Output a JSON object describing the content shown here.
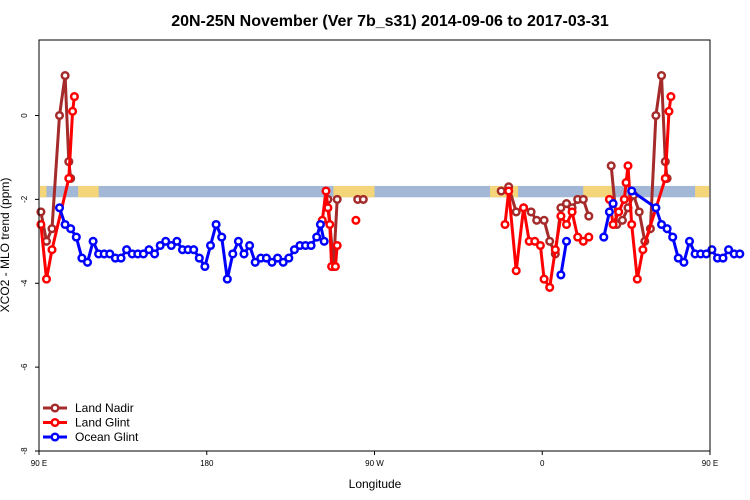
{
  "chart_data": {
    "type": "line",
    "title": "20N-25N November (Ver 7b_s31)   2014-09-06 to 2017-03-31",
    "xlabel": "Longitude",
    "ylabel": "XCO2 - MLO trend (ppm)",
    "xlim": [
      90,
      450
    ],
    "ylim": [
      -8,
      1.8
    ],
    "x_ticks": [
      {
        "value": 90,
        "label": "90 E"
      },
      {
        "value": 180,
        "label": "180"
      },
      {
        "value": 270,
        "label": "90 W"
      },
      {
        "value": 360,
        "label": "0"
      },
      {
        "value": 450,
        "label": "90 E"
      },
      {
        "value": 540,
        "label": "180"
      }
    ],
    "y_ticks": [
      {
        "value": 0,
        "label": "0"
      },
      {
        "value": -2,
        "label": "-2"
      },
      {
        "value": -4,
        "label": "-4"
      },
      {
        "value": -6,
        "label": "-6"
      },
      {
        "value": -8,
        "label": "-8"
      }
    ],
    "legend_position": "bottom-left",
    "colors": {
      "band_ocean": "#a3b8d6",
      "band_land": "#f5d57a"
    },
    "band": {
      "y_min": -1.95,
      "y_max": -1.68
    },
    "land_segments": [
      [
        90,
        94
      ],
      [
        111,
        122
      ],
      [
        248,
        270
      ],
      [
        332,
        347
      ],
      [
        382,
        398
      ],
      [
        442,
        474
      ]
    ],
    "series": [
      {
        "name": "Land Nadir",
        "color": "#a52a2a",
        "segments": [
          [
            [
              91,
              -2.3
            ],
            [
              94,
              -3.0
            ],
            [
              97,
              -2.7
            ],
            [
              101,
              0.0
            ],
            [
              104,
              0.95
            ],
            [
              106,
              -1.1
            ],
            [
              107,
              -1.5
            ]
          ],
          [
            [
              245,
              -2.0
            ],
            [
              248,
              -3.6
            ],
            [
              250,
              -2.0
            ]
          ],
          [
            [
              261,
              -2.0
            ],
            [
              264,
              -2.0
            ]
          ],
          [
            [
              338,
              -1.8
            ],
            [
              342,
              -1.7
            ],
            [
              346,
              -2.3
            ],
            [
              350,
              -2.2
            ],
            [
              354,
              -2.3
            ],
            [
              357,
              -2.5
            ],
            [
              361,
              -2.5
            ],
            [
              364,
              -3.0
            ],
            [
              367,
              -3.3
            ],
            [
              370,
              -2.2
            ],
            [
              373,
              -2.1
            ],
            [
              376,
              -2.2
            ],
            [
              379,
              -2.0
            ],
            [
              382,
              -2.0
            ],
            [
              385,
              -2.4
            ]
          ],
          [
            [
              397,
              -1.2
            ],
            [
              400,
              -2.6
            ],
            [
              403,
              -2.5
            ],
            [
              406,
              -2.2
            ],
            [
              409,
              -1.9
            ],
            [
              412,
              -2.3
            ],
            [
              415,
              -3.0
            ],
            [
              418,
              -2.7
            ],
            [
              421,
              0.0
            ],
            [
              424,
              0.95
            ],
            [
              426,
              -1.1
            ],
            [
              427,
              -1.5
            ]
          ]
        ]
      },
      {
        "name": "Land Glint",
        "color": "#ff0000",
        "segments": [
          [
            [
              91,
              -2.6
            ],
            [
              94,
              -3.9
            ],
            [
              97,
              -3.2
            ],
            [
              106,
              -1.5
            ],
            [
              108,
              0.1
            ],
            [
              109,
              0.45
            ]
          ],
          [
            [
              242,
              -2.5
            ],
            [
              244,
              -1.8
            ],
            [
              245,
              -2.2
            ],
            [
              246,
              -2.6
            ],
            [
              247,
              -3.6
            ],
            [
              249,
              -3.6
            ],
            [
              250,
              -3.1
            ]
          ],
          [
            [
              260,
              -2.5
            ]
          ],
          [
            [
              340,
              -2.6
            ],
            [
              342,
              -1.8
            ],
            [
              346,
              -3.7
            ],
            [
              350,
              -2.2
            ],
            [
              353,
              -3.0
            ],
            [
              356,
              -3.0
            ],
            [
              359,
              -3.1
            ],
            [
              361,
              -3.9
            ],
            [
              364,
              -4.1
            ],
            [
              367,
              -3.2
            ],
            [
              370,
              -2.4
            ],
            [
              373,
              -2.6
            ],
            [
              376,
              -2.3
            ],
            [
              379,
              -2.9
            ],
            [
              382,
              -3.0
            ],
            [
              385,
              -2.9
            ]
          ],
          [
            [
              396,
              -2.0
            ],
            [
              398,
              -2.6
            ],
            [
              401,
              -2.3
            ],
            [
              404,
              -2.0
            ],
            [
              405,
              -1.6
            ],
            [
              406,
              -1.2
            ],
            [
              408,
              -2.6
            ],
            [
              411,
              -3.9
            ],
            [
              414,
              -3.2
            ],
            [
              426,
              -1.5
            ],
            [
              428,
              0.1
            ],
            [
              429,
              0.45
            ]
          ]
        ]
      },
      {
        "name": "Ocean Glint",
        "color": "#0000ff",
        "segments": [
          [
            [
              101,
              -2.2
            ],
            [
              104,
              -2.6
            ],
            [
              107,
              -2.7
            ],
            [
              110,
              -2.9
            ],
            [
              113,
              -3.4
            ],
            [
              116,
              -3.5
            ],
            [
              119,
              -3.0
            ],
            [
              122,
              -3.3
            ],
            [
              125,
              -3.3
            ],
            [
              128,
              -3.3
            ],
            [
              131,
              -3.4
            ],
            [
              134,
              -3.4
            ],
            [
              137,
              -3.2
            ],
            [
              140,
              -3.3
            ],
            [
              143,
              -3.3
            ],
            [
              146,
              -3.3
            ],
            [
              149,
              -3.2
            ],
            [
              152,
              -3.3
            ],
            [
              155,
              -3.1
            ],
            [
              158,
              -3.0
            ],
            [
              161,
              -3.1
            ],
            [
              164,
              -3.0
            ],
            [
              167,
              -3.2
            ],
            [
              170,
              -3.2
            ],
            [
              173,
              -3.2
            ],
            [
              176,
              -3.4
            ],
            [
              179,
              -3.6
            ],
            [
              182,
              -3.1
            ],
            [
              185,
              -2.6
            ],
            [
              188,
              -2.9
            ],
            [
              191,
              -3.9
            ],
            [
              194,
              -3.3
            ],
            [
              197,
              -3.0
            ],
            [
              200,
              -3.3
            ],
            [
              203,
              -3.1
            ],
            [
              206,
              -3.5
            ],
            [
              209,
              -3.4
            ],
            [
              212,
              -3.4
            ],
            [
              215,
              -3.5
            ],
            [
              218,
              -3.4
            ],
            [
              221,
              -3.5
            ],
            [
              224,
              -3.4
            ],
            [
              227,
              -3.2
            ],
            [
              230,
              -3.1
            ],
            [
              233,
              -3.1
            ],
            [
              236,
              -3.1
            ],
            [
              239,
              -2.9
            ],
            [
              241,
              -2.6
            ],
            [
              243,
              -3.0
            ]
          ],
          [
            [
              370,
              -3.8
            ],
            [
              373,
              -3.0
            ]
          ],
          [
            [
              393,
              -2.9
            ],
            [
              396,
              -2.3
            ],
            [
              398,
              -2.1
            ]
          ],
          [
            [
              408,
              -1.8
            ],
            [
              421,
              -2.2
            ],
            [
              424,
              -2.6
            ],
            [
              427,
              -2.7
            ],
            [
              430,
              -2.9
            ],
            [
              433,
              -3.4
            ],
            [
              436,
              -3.5
            ],
            [
              439,
              -3.0
            ],
            [
              442,
              -3.3
            ],
            [
              445,
              -3.3
            ],
            [
              448,
              -3.3
            ],
            [
              451,
              -3.2
            ],
            [
              454,
              -3.4
            ],
            [
              457,
              -3.4
            ],
            [
              460,
              -3.2
            ],
            [
              463,
              -3.3
            ],
            [
              466,
              -3.3
            ]
          ]
        ]
      }
    ]
  }
}
